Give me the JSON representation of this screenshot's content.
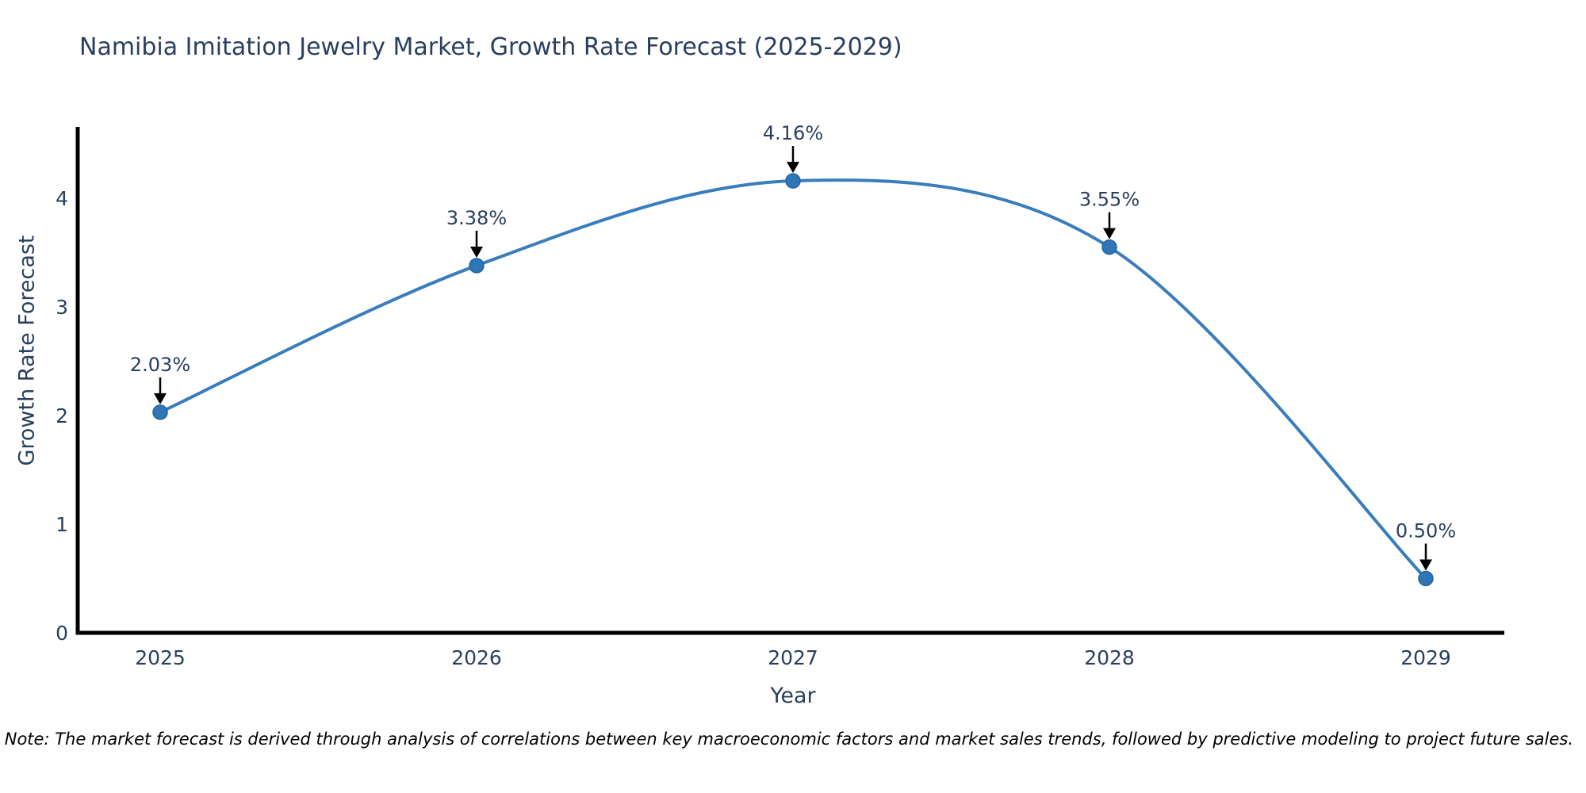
{
  "title": "Namibia Imitation Jewelry Market, Growth Rate Forecast (2025-2029)",
  "note": "Note: The market forecast is derived through analysis of correlations between key macroeconomic factors and market sales trends, followed by predictive modeling to project future sales.",
  "chart_data": {
    "type": "line",
    "title": "Namibia Imitation Jewelry Market, Growth Rate Forecast (2025-2029)",
    "xlabel": "Year",
    "ylabel": "Growth Rate Forecast",
    "x": [
      2025,
      2026,
      2027,
      2028,
      2029
    ],
    "series": [
      {
        "name": "Growth Rate Forecast",
        "values": [
          2.03,
          3.38,
          4.16,
          3.55,
          0.5
        ],
        "point_labels": [
          "2.03%",
          "3.38%",
          "4.16%",
          "3.55%",
          "0.50%"
        ]
      }
    ],
    "xticks": [
      "2025",
      "2026",
      "2027",
      "2028",
      "2029"
    ],
    "yticks": [
      0,
      1,
      2,
      3,
      4
    ],
    "ylim": [
      0,
      4.66
    ],
    "grid": false,
    "legend_position": "none",
    "line_shape": "spline",
    "annotation_arrows": true,
    "colors": {
      "line": "#3a7dbc",
      "marker": "#2e76b6",
      "marker_edge": "#28649c",
      "text": "#2a3f5f",
      "axis": "#000000",
      "arrow": "#000000",
      "background": "#ffffff"
    }
  }
}
